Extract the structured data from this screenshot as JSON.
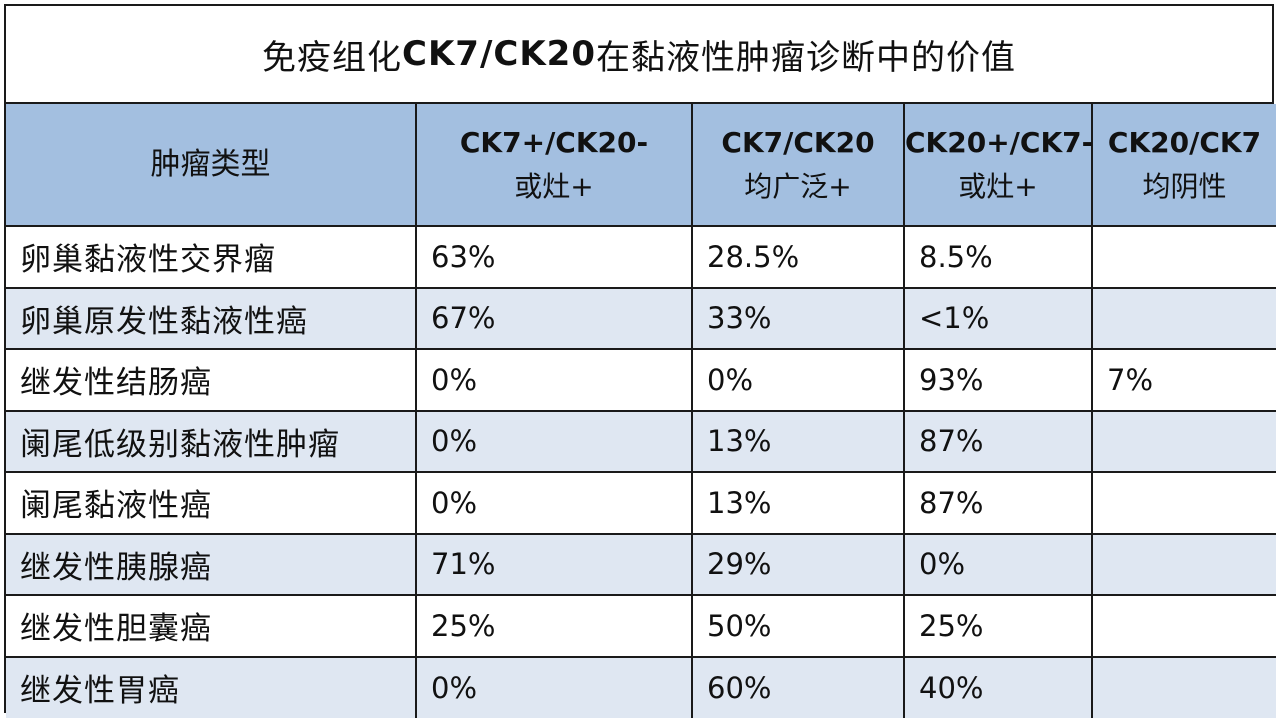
{
  "title": {
    "part1": "免疫组化 ",
    "part2": "CK7/CK20",
    "part3": " 在黏液性肿瘤诊断中的价值"
  },
  "header": {
    "type_col": "肿瘤类型",
    "col1_line1": "CK7+/CK20-",
    "col1_line2": "或灶+",
    "col2_line1": "CK7/CK20",
    "col2_line2": "均广泛+",
    "col3_line1": "CK20+/CK7-",
    "col3_line2": "或灶+",
    "col4_line1": "CK20/CK7",
    "col4_line2": "均阴性"
  },
  "rows": [
    {
      "name": "卵巢黏液性交界瘤",
      "c1": "63%",
      "c2": "28.5%",
      "c3": "8.5%",
      "c4": ""
    },
    {
      "name": "卵巢原发性黏液性癌",
      "c1": "67%",
      "c2": "33%",
      "c3": "<1%",
      "c4": ""
    },
    {
      "name": "继发性结肠癌",
      "c1": "0%",
      "c2": "0%",
      "c3": "93%",
      "c4": "7%"
    },
    {
      "name": "阑尾低级别黏液性肿瘤",
      "c1": "0%",
      "c2": "13%",
      "c3": "87%",
      "c4": ""
    },
    {
      "name": "阑尾黏液性癌",
      "c1": "0%",
      "c2": "13%",
      "c3": "87%",
      "c4": ""
    },
    {
      "name": "继发性胰腺癌",
      "c1": "71%",
      "c2": "29%",
      "c3": "0%",
      "c4": ""
    },
    {
      "name": "继发性胆囊癌",
      "c1": "25%",
      "c2": "50%",
      "c3": "25%",
      "c4": ""
    },
    {
      "name": "继发性胃癌",
      "c1": "0%",
      "c2": "60%",
      "c3": "40%",
      "c4": ""
    }
  ],
  "colors": {
    "header_bg": "#a3bfe0",
    "alt_row_bg": "#dfe7f2",
    "border": "#1a1a1a"
  }
}
